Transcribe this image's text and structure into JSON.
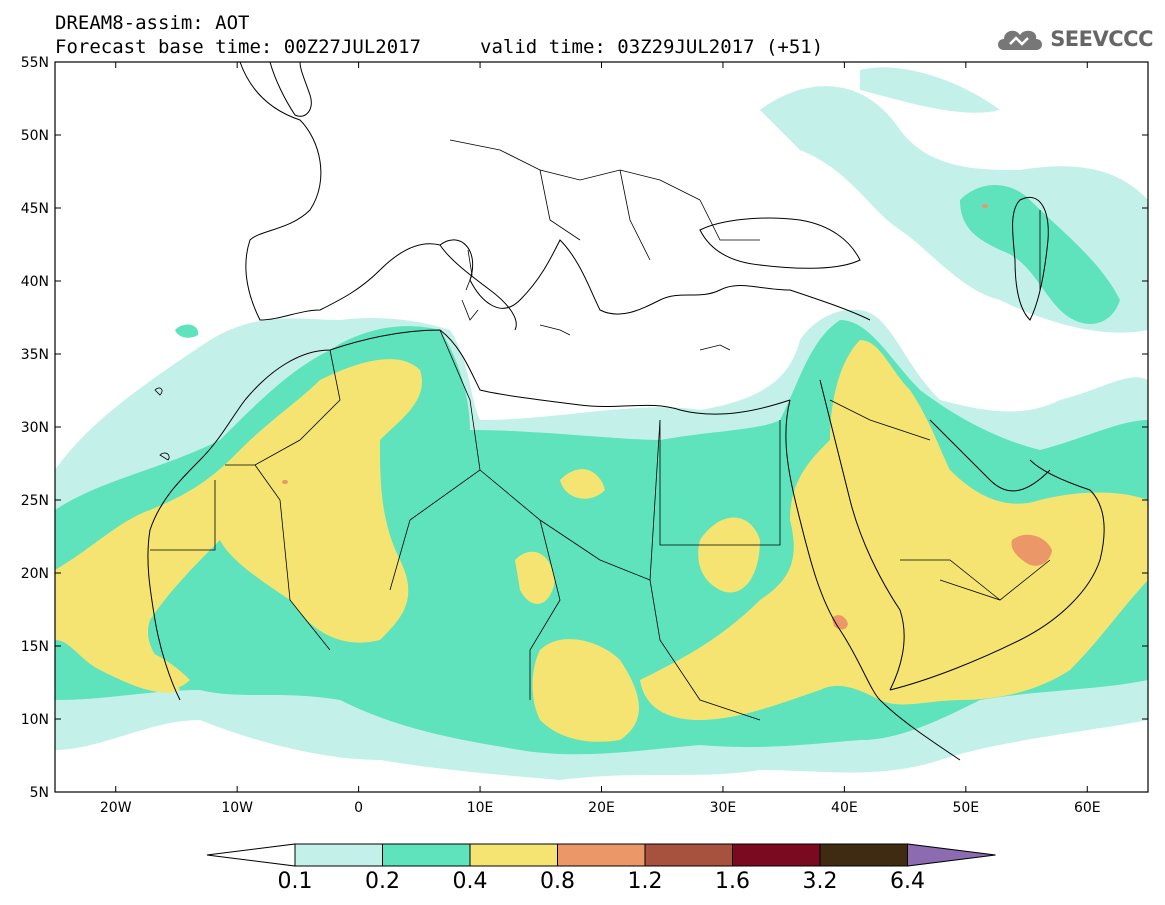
{
  "header": {
    "title": "DREAM8-assim: AOT",
    "base_time": "Forecast base time: 00Z27JUL2017",
    "valid_time": "valid time: 03Z29JUL2017 (+51)"
  },
  "logo": {
    "text": "SEEVCCC",
    "icon": "cloud-logo-icon"
  },
  "map": {
    "lat_labels": [
      "55N",
      "50N",
      "45N",
      "40N",
      "35N",
      "30N",
      "25N",
      "20N",
      "15N",
      "10N",
      "5N"
    ],
    "lon_labels": [
      "20W",
      "10W",
      "0",
      "10E",
      "20E",
      "30E",
      "40E",
      "50E",
      "60E"
    ],
    "lon_range": [
      -25,
      65
    ],
    "lat_range": [
      5,
      55
    ]
  },
  "colorbar": {
    "labels": [
      "0.1",
      "0.2",
      "0.4",
      "0.8",
      "1.2",
      "1.6",
      "3.2",
      "6.4"
    ],
    "colors": [
      "#ffffff",
      "#c3f1ea",
      "#5ee3bd",
      "#f5e472",
      "#eb9768",
      "#a7513f",
      "#7a0a20",
      "#3f2a12",
      "#8c6bb1"
    ]
  },
  "colors": {
    "light_teal": "#c3f1ea",
    "teal": "#5ee3bd",
    "yellow": "#f5e472",
    "orange": "#eb9768",
    "brown": "#a7513f"
  }
}
